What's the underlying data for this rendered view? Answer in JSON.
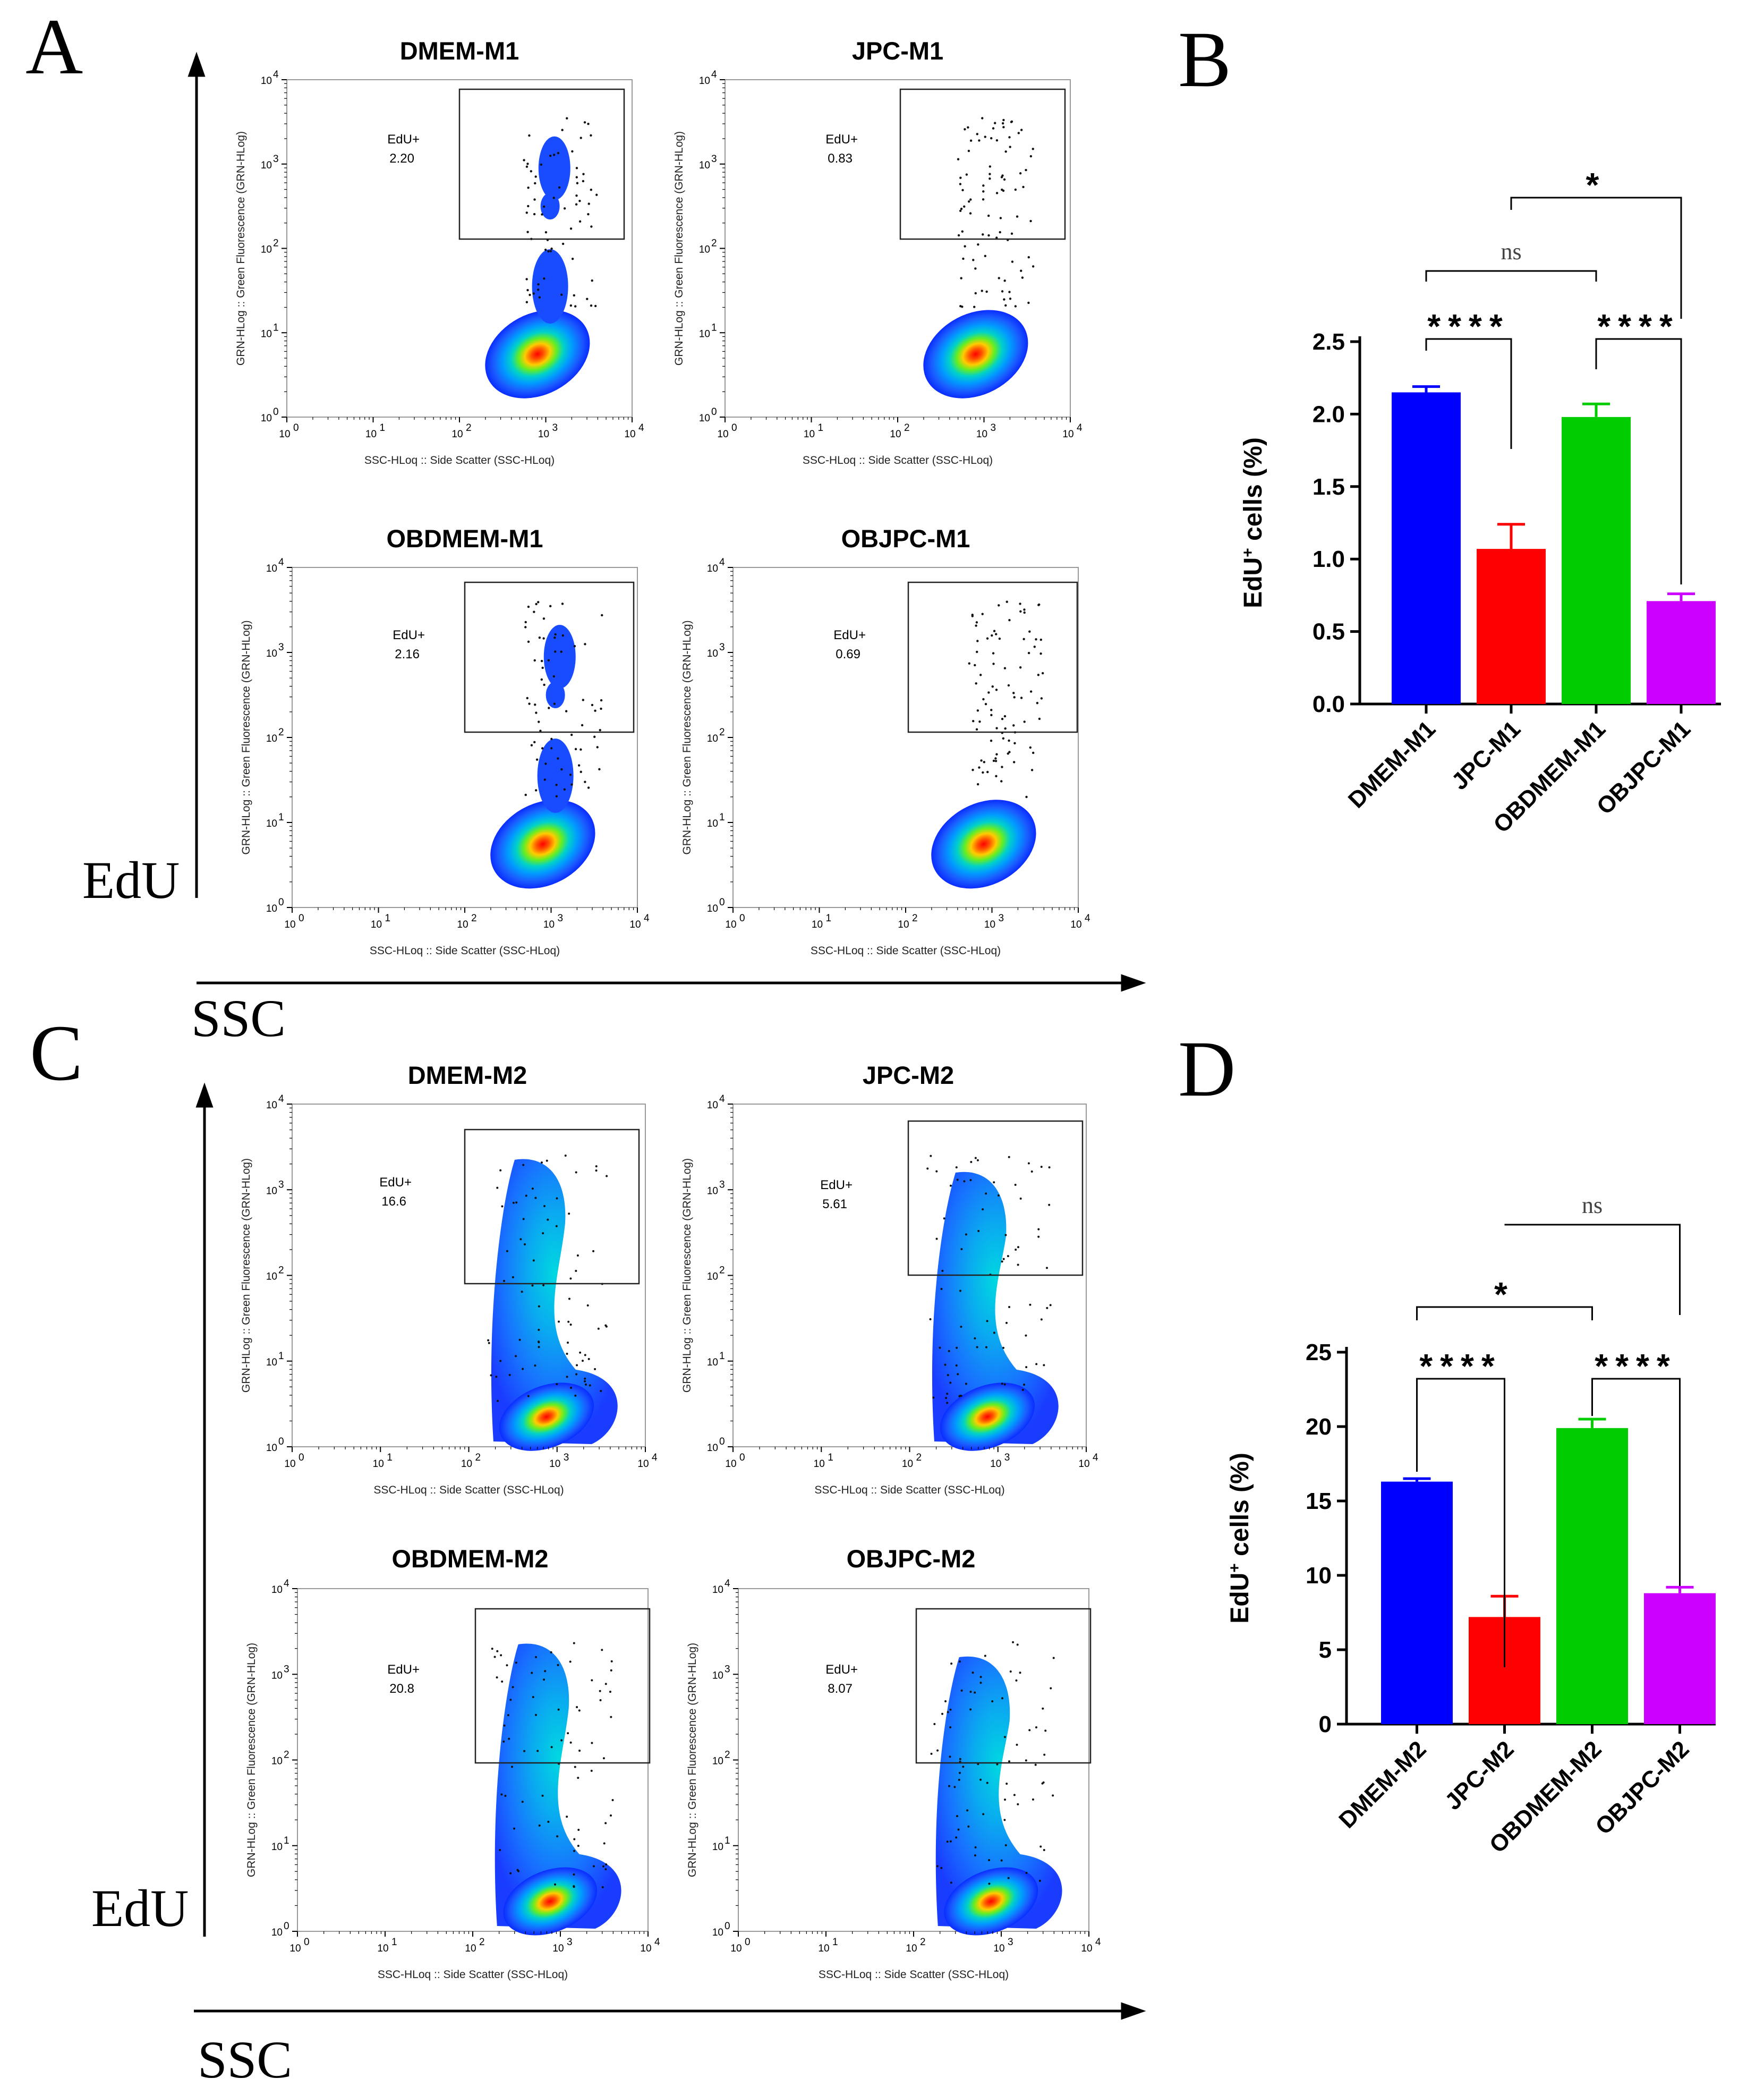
{
  "colors": {
    "DMEM": "#0000ff",
    "JPC": "#ff0000",
    "OBDMEM": "#00cc00",
    "OBJPC": "#cc00ff"
  },
  "panels": {
    "A": "A",
    "B": "B",
    "C": "C",
    "D": "D"
  },
  "axes": {
    "edu": "EdU",
    "ssc": "SSC"
  },
  "flow": {
    "x_label": "SSC-HLoq :: Side Scatter (SSC-HLoq)",
    "y_label": "GRN-HLog :: Green Fluorescence (GRN-HLog)",
    "gate_name": "EdU+",
    "ticks": [
      "10",
      "10",
      "10",
      "10",
      "10"
    ],
    "exps": [
      "0",
      "1",
      "2",
      "3",
      "4"
    ],
    "plots": [
      {
        "title": "DMEM-M1",
        "gate_value": "2.20"
      },
      {
        "title": "JPC-M1",
        "gate_value": "0.83"
      },
      {
        "title": "OBDMEM-M1",
        "gate_value": "2.16"
      },
      {
        "title": "OBJPC-M1",
        "gate_value": "0.69"
      },
      {
        "title": "DMEM-M2",
        "gate_value": "16.6"
      },
      {
        "title": "JPC-M2",
        "gate_value": "5.61"
      },
      {
        "title": "OBDMEM-M2",
        "gate_value": "20.8"
      },
      {
        "title": "OBJPC-M2",
        "gate_value": "8.07"
      }
    ]
  },
  "chart_data": [
    {
      "type": "bar",
      "panel": "B",
      "categories": [
        "DMEM-M1",
        "JPC-M1",
        "OBDMEM-M1",
        "OBJPC-M1"
      ],
      "values": [
        2.15,
        1.07,
        1.98,
        0.71
      ],
      "errors": [
        0.04,
        0.17,
        0.09,
        0.05
      ],
      "ylabel_main": "EdU",
      "ylabel_sup": "+",
      "ylabel_rest": " cells (%)",
      "ylim": [
        0,
        2.5
      ],
      "yticks": [
        "0.0",
        "0.5",
        "1.0",
        "1.5",
        "2.0",
        "2.5"
      ],
      "significance": [
        {
          "pair": "DMEM-M1 vs JPC-M1",
          "label": "****"
        },
        {
          "pair": "OBDMEM-M1 vs OBJPC-M1",
          "label": "****"
        },
        {
          "pair": "DMEM-M1 vs OBDMEM-M1",
          "label": "ns"
        },
        {
          "pair": "JPC-M1 vs OBJPC-M1",
          "label": "*"
        }
      ]
    },
    {
      "type": "bar",
      "panel": "D",
      "categories": [
        "DMEM-M2",
        "JPC-M2",
        "OBDMEM-M2",
        "OBJPC-M2"
      ],
      "values": [
        16.3,
        7.2,
        19.9,
        8.8
      ],
      "errors": [
        0.2,
        1.4,
        0.6,
        0.4
      ],
      "ylabel_main": "EdU",
      "ylabel_sup": "+",
      "ylabel_rest": " cells (%)",
      "ylim": [
        0,
        25
      ],
      "yticks": [
        "0",
        "5",
        "10",
        "15",
        "20",
        "25"
      ],
      "significance": [
        {
          "pair": "DMEM-M2 vs JPC-M2",
          "label": "****"
        },
        {
          "pair": "OBDMEM-M2 vs OBJPC-M2",
          "label": "****"
        },
        {
          "pair": "DMEM-M2 vs OBDMEM-M2",
          "label": "*"
        },
        {
          "pair": "JPC-M2 vs OBJPC-M2",
          "label": "ns"
        }
      ]
    }
  ]
}
